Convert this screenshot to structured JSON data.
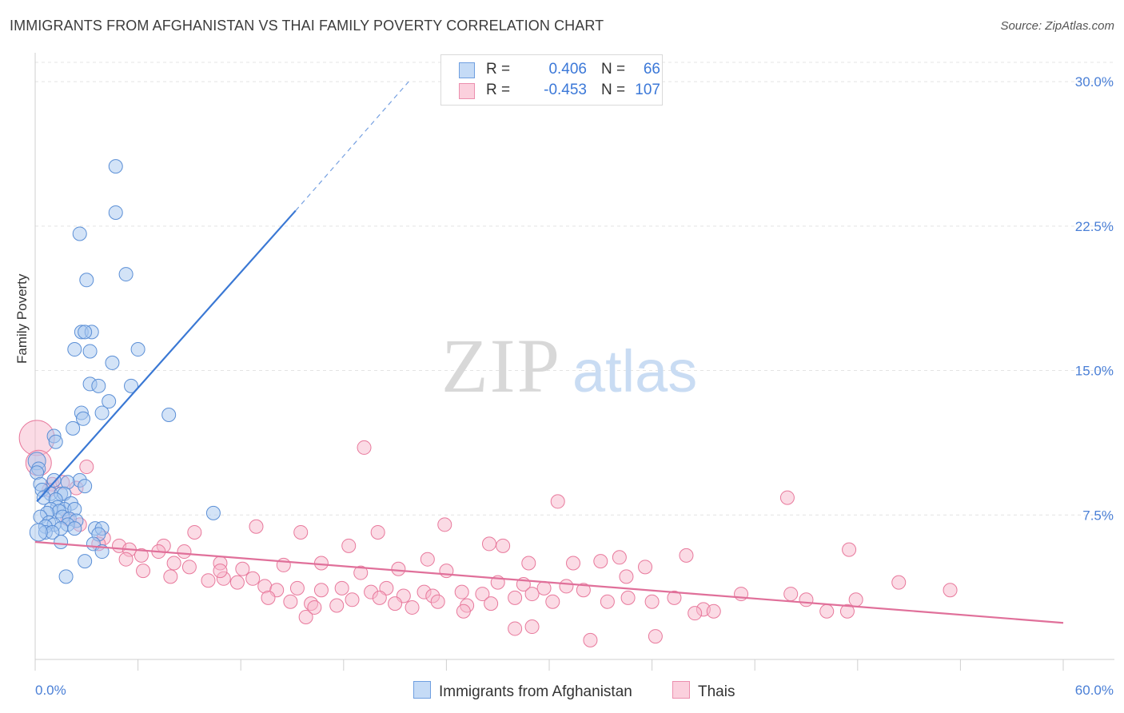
{
  "header": {
    "title": "IMMIGRANTS FROM AFGHANISTAN VS THAI FAMILY POVERTY CORRELATION CHART",
    "source": "Source: ZipAtlas.com"
  },
  "watermark": {
    "zip": "ZIP",
    "atlas": "atlas"
  },
  "legend": {
    "afghan": {
      "r_label": "R =",
      "r_value": "0.406",
      "n_label": "N =",
      "n_value": "66"
    },
    "thai": {
      "r_label": "R =",
      "r_value": "-0.453",
      "n_label": "N =",
      "n_value": "107"
    }
  },
  "bottom_legend": {
    "afghan": "Immigrants from Afghanistan",
    "thai": "Thais"
  },
  "colors": {
    "afghan_fill": "#a8c8f0",
    "afghan_stroke": "#5b8fd6",
    "afghan_line": "#3a78d4",
    "thai_fill": "#f7b8cb",
    "thai_stroke": "#e8799c",
    "thai_line": "#e0709a",
    "tick_text": "#4a7fd6",
    "grid": "#e4e4e4"
  },
  "chart_data": {
    "type": "scatter",
    "title": "IMMIGRANTS FROM AFGHANISTAN VS THAI FAMILY POVERTY CORRELATION CHART",
    "xlabel": "",
    "ylabel": "Family Poverty",
    "xlim": [
      0,
      60
    ],
    "ylim": [
      0,
      31
    ],
    "x_tick_labels": [
      "0.0%",
      "60.0%"
    ],
    "y_ticks": [
      7.5,
      15.0,
      22.5,
      30.0
    ],
    "y_tick_labels": [
      "7.5%",
      "15.0%",
      "22.5%",
      "30.0%"
    ],
    "grid": true,
    "legend_position": "top-center",
    "series": [
      {
        "name": "Immigrants from Afghanistan",
        "r": 0.406,
        "n": 66,
        "trend": {
          "x0": 0.1,
          "y0": 8.2,
          "x1": 15.2,
          "y1": 23.3,
          "dash_to_x": 21.8,
          "dash_to_y": 30.0
        },
        "points": [
          [
            4.7,
            25.6
          ],
          [
            4.7,
            23.2
          ],
          [
            2.6,
            22.1
          ],
          [
            5.3,
            20.0
          ],
          [
            3.0,
            19.7
          ],
          [
            2.7,
            17.0
          ],
          [
            3.3,
            17.0
          ],
          [
            2.9,
            17.0
          ],
          [
            2.3,
            16.1
          ],
          [
            3.2,
            16.0
          ],
          [
            6.0,
            16.1
          ],
          [
            4.5,
            15.4
          ],
          [
            3.2,
            14.3
          ],
          [
            3.7,
            14.2
          ],
          [
            5.6,
            14.2
          ],
          [
            4.3,
            13.4
          ],
          [
            2.7,
            12.8
          ],
          [
            3.9,
            12.8
          ],
          [
            2.8,
            12.5
          ],
          [
            7.8,
            12.7
          ],
          [
            2.2,
            12.0
          ],
          [
            1.1,
            11.6
          ],
          [
            1.2,
            11.3
          ],
          [
            0.1,
            10.3
          ],
          [
            0.2,
            9.9
          ],
          [
            0.1,
            9.7
          ],
          [
            1.1,
            9.3
          ],
          [
            2.6,
            9.3
          ],
          [
            0.3,
            9.1
          ],
          [
            1.9,
            9.2
          ],
          [
            2.9,
            9.0
          ],
          [
            0.4,
            8.8
          ],
          [
            0.9,
            8.6
          ],
          [
            1.5,
            8.6
          ],
          [
            1.7,
            8.6
          ],
          [
            0.5,
            8.4
          ],
          [
            1.2,
            8.3
          ],
          [
            2.1,
            8.1
          ],
          [
            1.3,
            7.9
          ],
          [
            1.7,
            7.8
          ],
          [
            0.9,
            7.8
          ],
          [
            1.4,
            7.7
          ],
          [
            2.3,
            7.8
          ],
          [
            0.7,
            7.6
          ],
          [
            1.6,
            7.4
          ],
          [
            2.0,
            7.3
          ],
          [
            0.3,
            7.4
          ],
          [
            2.4,
            7.2
          ],
          [
            0.8,
            7.1
          ],
          [
            1.1,
            7.0
          ],
          [
            1.9,
            7.0
          ],
          [
            0.6,
            6.9
          ],
          [
            1.5,
            6.8
          ],
          [
            3.5,
            6.8
          ],
          [
            3.9,
            6.8
          ],
          [
            2.3,
            6.8
          ],
          [
            10.4,
            7.6
          ],
          [
            0.6,
            6.6
          ],
          [
            1.0,
            6.6
          ],
          [
            3.7,
            6.5
          ],
          [
            1.5,
            6.1
          ],
          [
            3.4,
            6.0
          ],
          [
            3.9,
            5.6
          ],
          [
            2.9,
            5.1
          ],
          [
            1.8,
            4.3
          ],
          [
            0.2,
            6.6
          ]
        ]
      },
      {
        "name": "Thais",
        "r": -0.453,
        "n": 107,
        "trend": {
          "x0": 0.0,
          "y0": 6.1,
          "x1": 60.0,
          "y1": 1.9
        },
        "points": [
          [
            0.1,
            11.5
          ],
          [
            0.2,
            10.2
          ],
          [
            3.0,
            10.0
          ],
          [
            1.0,
            9.1
          ],
          [
            1.6,
            9.2
          ],
          [
            2.4,
            8.9
          ],
          [
            0.8,
            8.8
          ],
          [
            1.9,
            7.3
          ],
          [
            2.6,
            7.0
          ],
          [
            19.2,
            11.0
          ],
          [
            30.5,
            8.2
          ],
          [
            43.9,
            8.4
          ],
          [
            9.3,
            6.6
          ],
          [
            12.9,
            6.9
          ],
          [
            15.5,
            6.6
          ],
          [
            20.0,
            6.6
          ],
          [
            23.9,
            7.0
          ],
          [
            4.0,
            6.3
          ],
          [
            3.7,
            6.0
          ],
          [
            4.9,
            5.9
          ],
          [
            5.5,
            5.7
          ],
          [
            7.5,
            5.9
          ],
          [
            8.7,
            5.6
          ],
          [
            18.3,
            5.9
          ],
          [
            26.5,
            6.0
          ],
          [
            27.3,
            5.9
          ],
          [
            22.9,
            5.2
          ],
          [
            28.8,
            5.0
          ],
          [
            31.4,
            5.0
          ],
          [
            33.0,
            5.1
          ],
          [
            34.1,
            5.3
          ],
          [
            38.0,
            5.4
          ],
          [
            47.5,
            5.7
          ],
          [
            6.2,
            5.4
          ],
          [
            7.2,
            5.6
          ],
          [
            8.1,
            5.0
          ],
          [
            9.0,
            4.8
          ],
          [
            10.8,
            5.0
          ],
          [
            12.1,
            4.7
          ],
          [
            14.5,
            4.9
          ],
          [
            16.7,
            5.0
          ],
          [
            19.0,
            4.5
          ],
          [
            21.2,
            4.7
          ],
          [
            24.0,
            4.6
          ],
          [
            35.6,
            4.8
          ],
          [
            5.3,
            5.2
          ],
          [
            6.3,
            4.6
          ],
          [
            7.9,
            4.3
          ],
          [
            10.1,
            4.1
          ],
          [
            11.0,
            4.2
          ],
          [
            11.8,
            4.0
          ],
          [
            12.7,
            4.2
          ],
          [
            13.4,
            3.8
          ],
          [
            14.1,
            3.6
          ],
          [
            15.3,
            3.7
          ],
          [
            16.7,
            3.6
          ],
          [
            17.9,
            3.7
          ],
          [
            19.6,
            3.5
          ],
          [
            20.5,
            3.7
          ],
          [
            21.5,
            3.3
          ],
          [
            22.7,
            3.5
          ],
          [
            23.2,
            3.3
          ],
          [
            24.9,
            3.5
          ],
          [
            26.1,
            3.4
          ],
          [
            27.0,
            4.0
          ],
          [
            28.5,
            3.9
          ],
          [
            29.7,
            3.7
          ],
          [
            31.0,
            3.8
          ],
          [
            32.0,
            3.6
          ],
          [
            13.6,
            3.2
          ],
          [
            14.9,
            3.0
          ],
          [
            16.1,
            2.9
          ],
          [
            17.6,
            2.8
          ],
          [
            18.5,
            3.1
          ],
          [
            20.1,
            3.2
          ],
          [
            21.0,
            2.9
          ],
          [
            22.0,
            2.7
          ],
          [
            23.5,
            3.0
          ],
          [
            25.2,
            2.8
          ],
          [
            26.6,
            2.9
          ],
          [
            28.0,
            3.2
          ],
          [
            29.0,
            3.4
          ],
          [
            30.2,
            3.0
          ],
          [
            33.4,
            3.0
          ],
          [
            34.6,
            3.2
          ],
          [
            36.0,
            3.0
          ],
          [
            37.3,
            3.2
          ],
          [
            39.0,
            2.6
          ],
          [
            39.6,
            2.5
          ],
          [
            45.0,
            3.1
          ],
          [
            47.4,
            2.5
          ],
          [
            47.9,
            3.1
          ],
          [
            41.2,
            3.4
          ],
          [
            50.4,
            4.0
          ],
          [
            53.4,
            3.6
          ],
          [
            10.8,
            4.6
          ],
          [
            15.8,
            2.2
          ],
          [
            16.3,
            2.7
          ],
          [
            25.0,
            2.5
          ],
          [
            28.0,
            1.6
          ],
          [
            29.0,
            1.7
          ],
          [
            32.4,
            1.0
          ],
          [
            36.2,
            1.2
          ],
          [
            44.1,
            3.4
          ],
          [
            46.2,
            2.5
          ],
          [
            34.5,
            4.3
          ],
          [
            38.5,
            2.4
          ]
        ]
      }
    ]
  }
}
